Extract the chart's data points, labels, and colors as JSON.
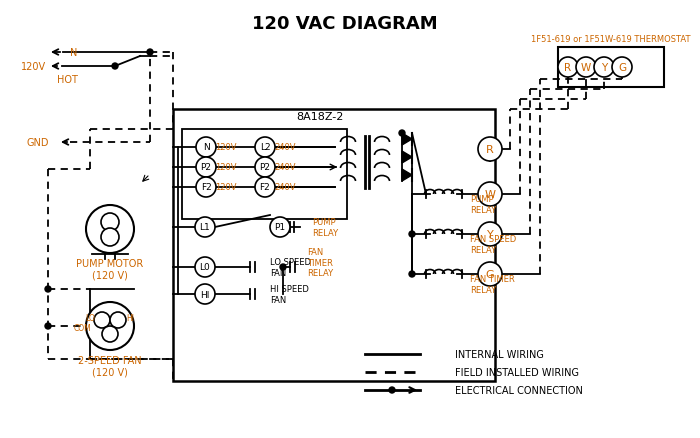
{
  "title": "120 VAC DIAGRAM",
  "background_color": "#ffffff",
  "line_color": "#000000",
  "orange_color": "#cc6600",
  "thermostat_label": "1F51-619 or 1F51W-619 THERMOSTAT",
  "control_box_label": "8A18Z-2",
  "terminals_RWGY": [
    "R",
    "W",
    "Y",
    "G"
  ],
  "left_terminals": [
    "N",
    "P2",
    "F2"
  ],
  "right_terminals": [
    "L2",
    "P2",
    "F2"
  ],
  "left_voltages": [
    "120V",
    "120V",
    "120V"
  ],
  "right_voltages": [
    "240V",
    "240V",
    "240V"
  ],
  "relay_letters_right": [
    "R",
    "W",
    "Y",
    "G"
  ],
  "relay_coil_labels": [
    "PUMP\nRELAY",
    "FAN SPEED\nRELAY",
    "FAN TIMER\nRELAY"
  ],
  "pump_motor_label": "PUMP MOTOR\n(120 V)",
  "fan_label": "2-SPEED FAN\n(120 V)",
  "legend": [
    {
      "label": "INTERNAL WIRING",
      "style": "solid"
    },
    {
      "label": "FIELD INSTALLED WIRING",
      "style": "dashed"
    },
    {
      "label": "ELECTRICAL CONNECTION",
      "style": "dot_arrow"
    }
  ]
}
